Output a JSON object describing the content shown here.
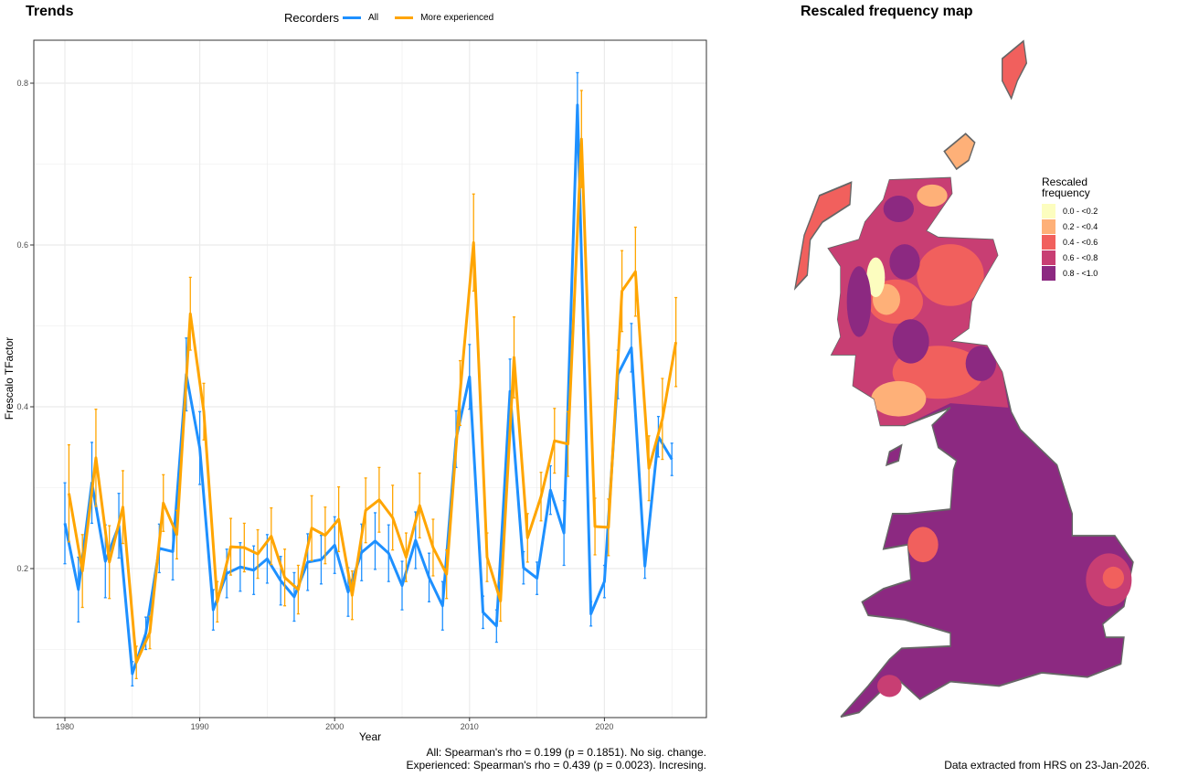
{
  "left_title": "Trends",
  "right_title": "Rescaled frequency map",
  "chart_data": {
    "type": "line",
    "xlabel": "Year",
    "ylabel": "Frescalo TFactor",
    "xlim": [
      1977.7,
      2027
    ],
    "ylim": [
      0.03,
      0.865
    ],
    "xticks": [
      1980,
      1990,
      2000,
      2010,
      2020
    ],
    "yticks": [
      0.2,
      0.4,
      0.6,
      0.8
    ],
    "grid": true,
    "legend": {
      "title": "Recorders",
      "position": "top"
    },
    "x": [
      1980,
      1981,
      1982,
      1983,
      1984,
      1985,
      1986,
      1987,
      1988,
      1989,
      1990,
      1991,
      1992,
      1993,
      1994,
      1995,
      1996,
      1997,
      1998,
      1999,
      2000,
      2001,
      2002,
      2003,
      2004,
      2005,
      2006,
      2007,
      2008,
      2009,
      2010,
      2011,
      2012,
      2013,
      2014,
      2015,
      2016,
      2017,
      2018,
      2019,
      2020,
      2021,
      2022,
      2023,
      2024,
      2025
    ],
    "series": [
      {
        "name": "All",
        "color": "#1E90FF",
        "values": [
          0.256,
          0.174,
          0.306,
          0.209,
          0.253,
          0.07,
          0.12,
          0.225,
          0.221,
          0.44,
          0.349,
          0.149,
          0.194,
          0.202,
          0.198,
          0.212,
          0.185,
          0.165,
          0.208,
          0.211,
          0.229,
          0.171,
          0.22,
          0.234,
          0.219,
          0.179,
          0.235,
          0.189,
          0.154,
          0.36,
          0.437,
          0.146,
          0.129,
          0.419,
          0.201,
          0.188,
          0.297,
          0.244,
          0.773,
          0.144,
          0.184,
          0.44,
          0.473,
          0.203,
          0.363,
          0.335
        ],
        "error": [
          0.05,
          0.04,
          0.05,
          0.045,
          0.04,
          0.015,
          0.02,
          0.03,
          0.035,
          0.045,
          0.045,
          0.025,
          0.03,
          0.03,
          0.03,
          0.03,
          0.03,
          0.03,
          0.035,
          0.03,
          0.035,
          0.03,
          0.035,
          0.035,
          0.035,
          0.03,
          0.035,
          0.03,
          0.03,
          0.035,
          0.04,
          0.02,
          0.02,
          0.04,
          0.02,
          0.02,
          0.03,
          0.04,
          0.04,
          0.015,
          0.02,
          0.03,
          0.03,
          0.015,
          0.025,
          0.02
        ]
      },
      {
        "name": "More experienced",
        "color": "#FFA500",
        "values": [
          0.293,
          0.197,
          0.337,
          0.208,
          0.276,
          0.084,
          0.121,
          0.281,
          0.242,
          0.515,
          0.394,
          0.159,
          0.227,
          0.226,
          0.218,
          0.24,
          0.189,
          0.174,
          0.25,
          0.241,
          0.261,
          0.167,
          0.272,
          0.285,
          0.263,
          0.214,
          0.278,
          0.226,
          0.193,
          0.417,
          0.603,
          0.214,
          0.16,
          0.461,
          0.238,
          0.289,
          0.358,
          0.354,
          0.731,
          0.252,
          0.251,
          0.543,
          0.567,
          0.324,
          0.385,
          0.48
        ],
        "error": [
          0.06,
          0.045,
          0.06,
          0.045,
          0.045,
          0.02,
          0.02,
          0.035,
          0.03,
          0.045,
          0.035,
          0.025,
          0.035,
          0.03,
          0.03,
          0.035,
          0.035,
          0.03,
          0.04,
          0.035,
          0.04,
          0.03,
          0.04,
          0.04,
          0.04,
          0.03,
          0.04,
          0.035,
          0.03,
          0.04,
          0.06,
          0.03,
          0.025,
          0.05,
          0.03,
          0.03,
          0.04,
          0.04,
          0.06,
          0.035,
          0.035,
          0.05,
          0.055,
          0.04,
          0.05,
          0.055
        ]
      }
    ]
  },
  "footnote_all": "All: Spearman's rho = 0.199 (p = 0.1851). No sig. change.",
  "footnote_exp": "Experienced: Spearman's rho = 0.439 (p = 0.0023). Incresing.",
  "map": {
    "legend_title_1": "Rescaled",
    "legend_title_2": "frequency",
    "classes": [
      {
        "label": "0.0 - <0.2",
        "color": "#FCFDBF"
      },
      {
        "label": "0.2 - <0.4",
        "color": "#FEB078"
      },
      {
        "label": "0.4 - <0.6",
        "color": "#F1605D"
      },
      {
        "label": "0.6 - <0.8",
        "color": "#C83E73"
      },
      {
        "label": "0.8 - <1.0",
        "color": "#8C2981"
      }
    ],
    "outline_color": "#666666",
    "credit": "Data extracted from HRS on 23-Jan-2026."
  }
}
